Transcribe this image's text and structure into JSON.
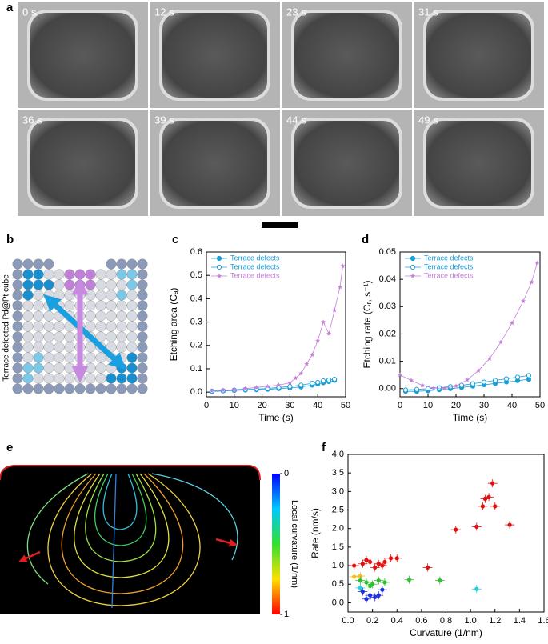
{
  "panel_labels": [
    "a",
    "b",
    "c",
    "d",
    "e",
    "f"
  ],
  "micrographs": {
    "times": [
      "0 s",
      "12 s",
      "23 s",
      "31 s",
      "36 s",
      "39 s",
      "44 s",
      "49 s"
    ]
  },
  "panel_b": {
    "caption": "Terrace defected Pd@Pt cube"
  },
  "panel_e": {
    "colorbar_label": "Local curvature (1/nm)",
    "colorbar_lim": [
      0,
      1
    ],
    "colorbar_ticks": [
      0,
      1
    ]
  },
  "chart_data": [
    {
      "type": "line",
      "xlabel": "Time (s)",
      "ylabel": "Etching area (Cₐ)",
      "xlim": [
        0,
        50
      ],
      "xticks": [
        0,
        10,
        20,
        30,
        40,
        50
      ],
      "ylim": [
        -0.02,
        0.6
      ],
      "yticks": [
        {
          "value": 0,
          "label": "0.0"
        },
        0.1,
        0.2,
        0.3,
        0.4,
        0.5,
        0.6
      ],
      "legend": "upper left",
      "series": [
        {
          "name": "Terrace defects",
          "color": "#1a9fd9",
          "marker": "filled-circle",
          "x": [
            2,
            6,
            10,
            14,
            18,
            22,
            26,
            30,
            34,
            38,
            40,
            42,
            44,
            46
          ],
          "values": [
            0.003,
            0.005,
            0.007,
            0.009,
            0.01,
            0.012,
            0.015,
            0.018,
            0.022,
            0.03,
            0.035,
            0.04,
            0.045,
            0.05
          ]
        },
        {
          "name": "Terrace defects",
          "color": "#1a9fd9",
          "marker": "open-circle",
          "x": [
            2,
            6,
            10,
            14,
            18,
            22,
            26,
            30,
            34,
            38,
            40,
            42,
            44,
            46
          ],
          "values": [
            0.004,
            0.006,
            0.009,
            0.011,
            0.013,
            0.016,
            0.02,
            0.024,
            0.03,
            0.038,
            0.042,
            0.048,
            0.052,
            0.055
          ]
        },
        {
          "name": "Terrace defects",
          "color": "#c57fd8",
          "marker": "star",
          "x": [
            2,
            6,
            10,
            14,
            18,
            22,
            26,
            30,
            32,
            34,
            36,
            38,
            40,
            42,
            44,
            46,
            48,
            49
          ],
          "values": [
            0.005,
            0.008,
            0.01,
            0.015,
            0.02,
            0.025,
            0.03,
            0.04,
            0.06,
            0.08,
            0.12,
            0.16,
            0.22,
            0.3,
            0.25,
            0.35,
            0.45,
            0.54
          ]
        }
      ]
    },
    {
      "type": "line",
      "xlabel": "Time (s)",
      "ylabel": "Etching rate (Cᵣ, s⁻¹)",
      "xlim": [
        0,
        50
      ],
      "xticks": [
        0,
        10,
        20,
        30,
        40,
        50
      ],
      "ylim": [
        -0.003,
        0.05
      ],
      "yticks": [
        {
          "value": 0,
          "label": "0.00"
        },
        0.01,
        0.02,
        0.03,
        0.04,
        0.05
      ],
      "legend": "upper left",
      "series": [
        {
          "name": "Terrace defects",
          "color": "#1a9fd9",
          "marker": "filled-circle",
          "x": [
            2,
            6,
            10,
            14,
            18,
            22,
            26,
            30,
            34,
            38,
            42,
            46
          ],
          "values": [
            -0.001,
            -0.001,
            -0.0008,
            -0.0004,
            0,
            0.0004,
            0.0009,
            0.0014,
            0.0019,
            0.0024,
            0.0029,
            0.0034
          ]
        },
        {
          "name": "Terrace defects",
          "color": "#1a9fd9",
          "marker": "open-circle",
          "x": [
            2,
            6,
            10,
            14,
            18,
            22,
            26,
            30,
            34,
            38,
            42,
            46
          ],
          "values": [
            -0.0005,
            -0.0003,
            0,
            0.0003,
            0.0007,
            0.0012,
            0.0018,
            0.0024,
            0.003,
            0.0036,
            0.0042,
            0.0048
          ]
        },
        {
          "name": "Terrace defects",
          "color": "#c57fd8",
          "marker": "star",
          "x": [
            0,
            4,
            8,
            12,
            16,
            20,
            24,
            28,
            32,
            36,
            40,
            44,
            47,
            49
          ],
          "values": [
            0.005,
            0.003,
            0.0012,
            0.0002,
            0.0001,
            0.001,
            0.0032,
            0.0066,
            0.011,
            0.017,
            0.024,
            0.032,
            0.039,
            0.046
          ]
        }
      ]
    },
    {
      "type": "scatter",
      "xlabel": "Curvature (1/nm)",
      "ylabel": "Rate (nm/s)",
      "xlim": [
        0,
        1.6
      ],
      "xticks": [
        {
          "value": 0,
          "label": "0.0"
        },
        0.2,
        0.4,
        0.6,
        0.8,
        {
          "value": 1,
          "label": "1.0"
        },
        1.2,
        1.4,
        1.6
      ],
      "ylim": [
        -0.25,
        4
      ],
      "yticks": [
        {
          "value": 0,
          "label": "0.0"
        },
        0.5,
        {
          "value": 1,
          "label": "1.0"
        },
        1.5,
        {
          "value": 2,
          "label": "2.0"
        },
        2.5,
        {
          "value": 3,
          "label": "3.0"
        },
        3.5,
        {
          "value": 4,
          "label": "4.0"
        }
      ],
      "series": [
        {
          "color": "#e01010",
          "x": [
            0.05,
            0.12,
            0.15,
            0.18,
            0.22,
            0.25,
            0.28,
            0.3,
            0.35,
            0.4,
            0.65,
            0.88,
            1.05,
            1.1,
            1.12,
            1.15,
            1.18,
            1.2,
            1.32
          ],
          "values": [
            1.0,
            1.05,
            1.15,
            1.1,
            0.95,
            1.05,
            1.0,
            1.1,
            1.2,
            1.2,
            0.95,
            1.97,
            2.05,
            2.6,
            2.8,
            2.85,
            3.22,
            2.6,
            2.1
          ]
        },
        {
          "color": "#f0c020",
          "x": [
            0.05,
            0.1
          ],
          "values": [
            0.7,
            0.72
          ]
        },
        {
          "color": "#30c030",
          "x": [
            0.1,
            0.15,
            0.18,
            0.2,
            0.25,
            0.3,
            0.5,
            0.75
          ],
          "values": [
            0.6,
            0.55,
            0.45,
            0.5,
            0.6,
            0.55,
            0.62,
            0.6
          ]
        },
        {
          "color": "#20d0e0",
          "x": [
            0.1,
            1.05
          ],
          "values": [
            0.4,
            0.37
          ]
        },
        {
          "color": "#2030e0",
          "x": [
            0.12,
            0.15,
            0.18,
            0.22,
            0.25,
            0.28
          ],
          "values": [
            0.3,
            0.1,
            0.2,
            0.15,
            0.2,
            0.35
          ]
        }
      ]
    }
  ]
}
